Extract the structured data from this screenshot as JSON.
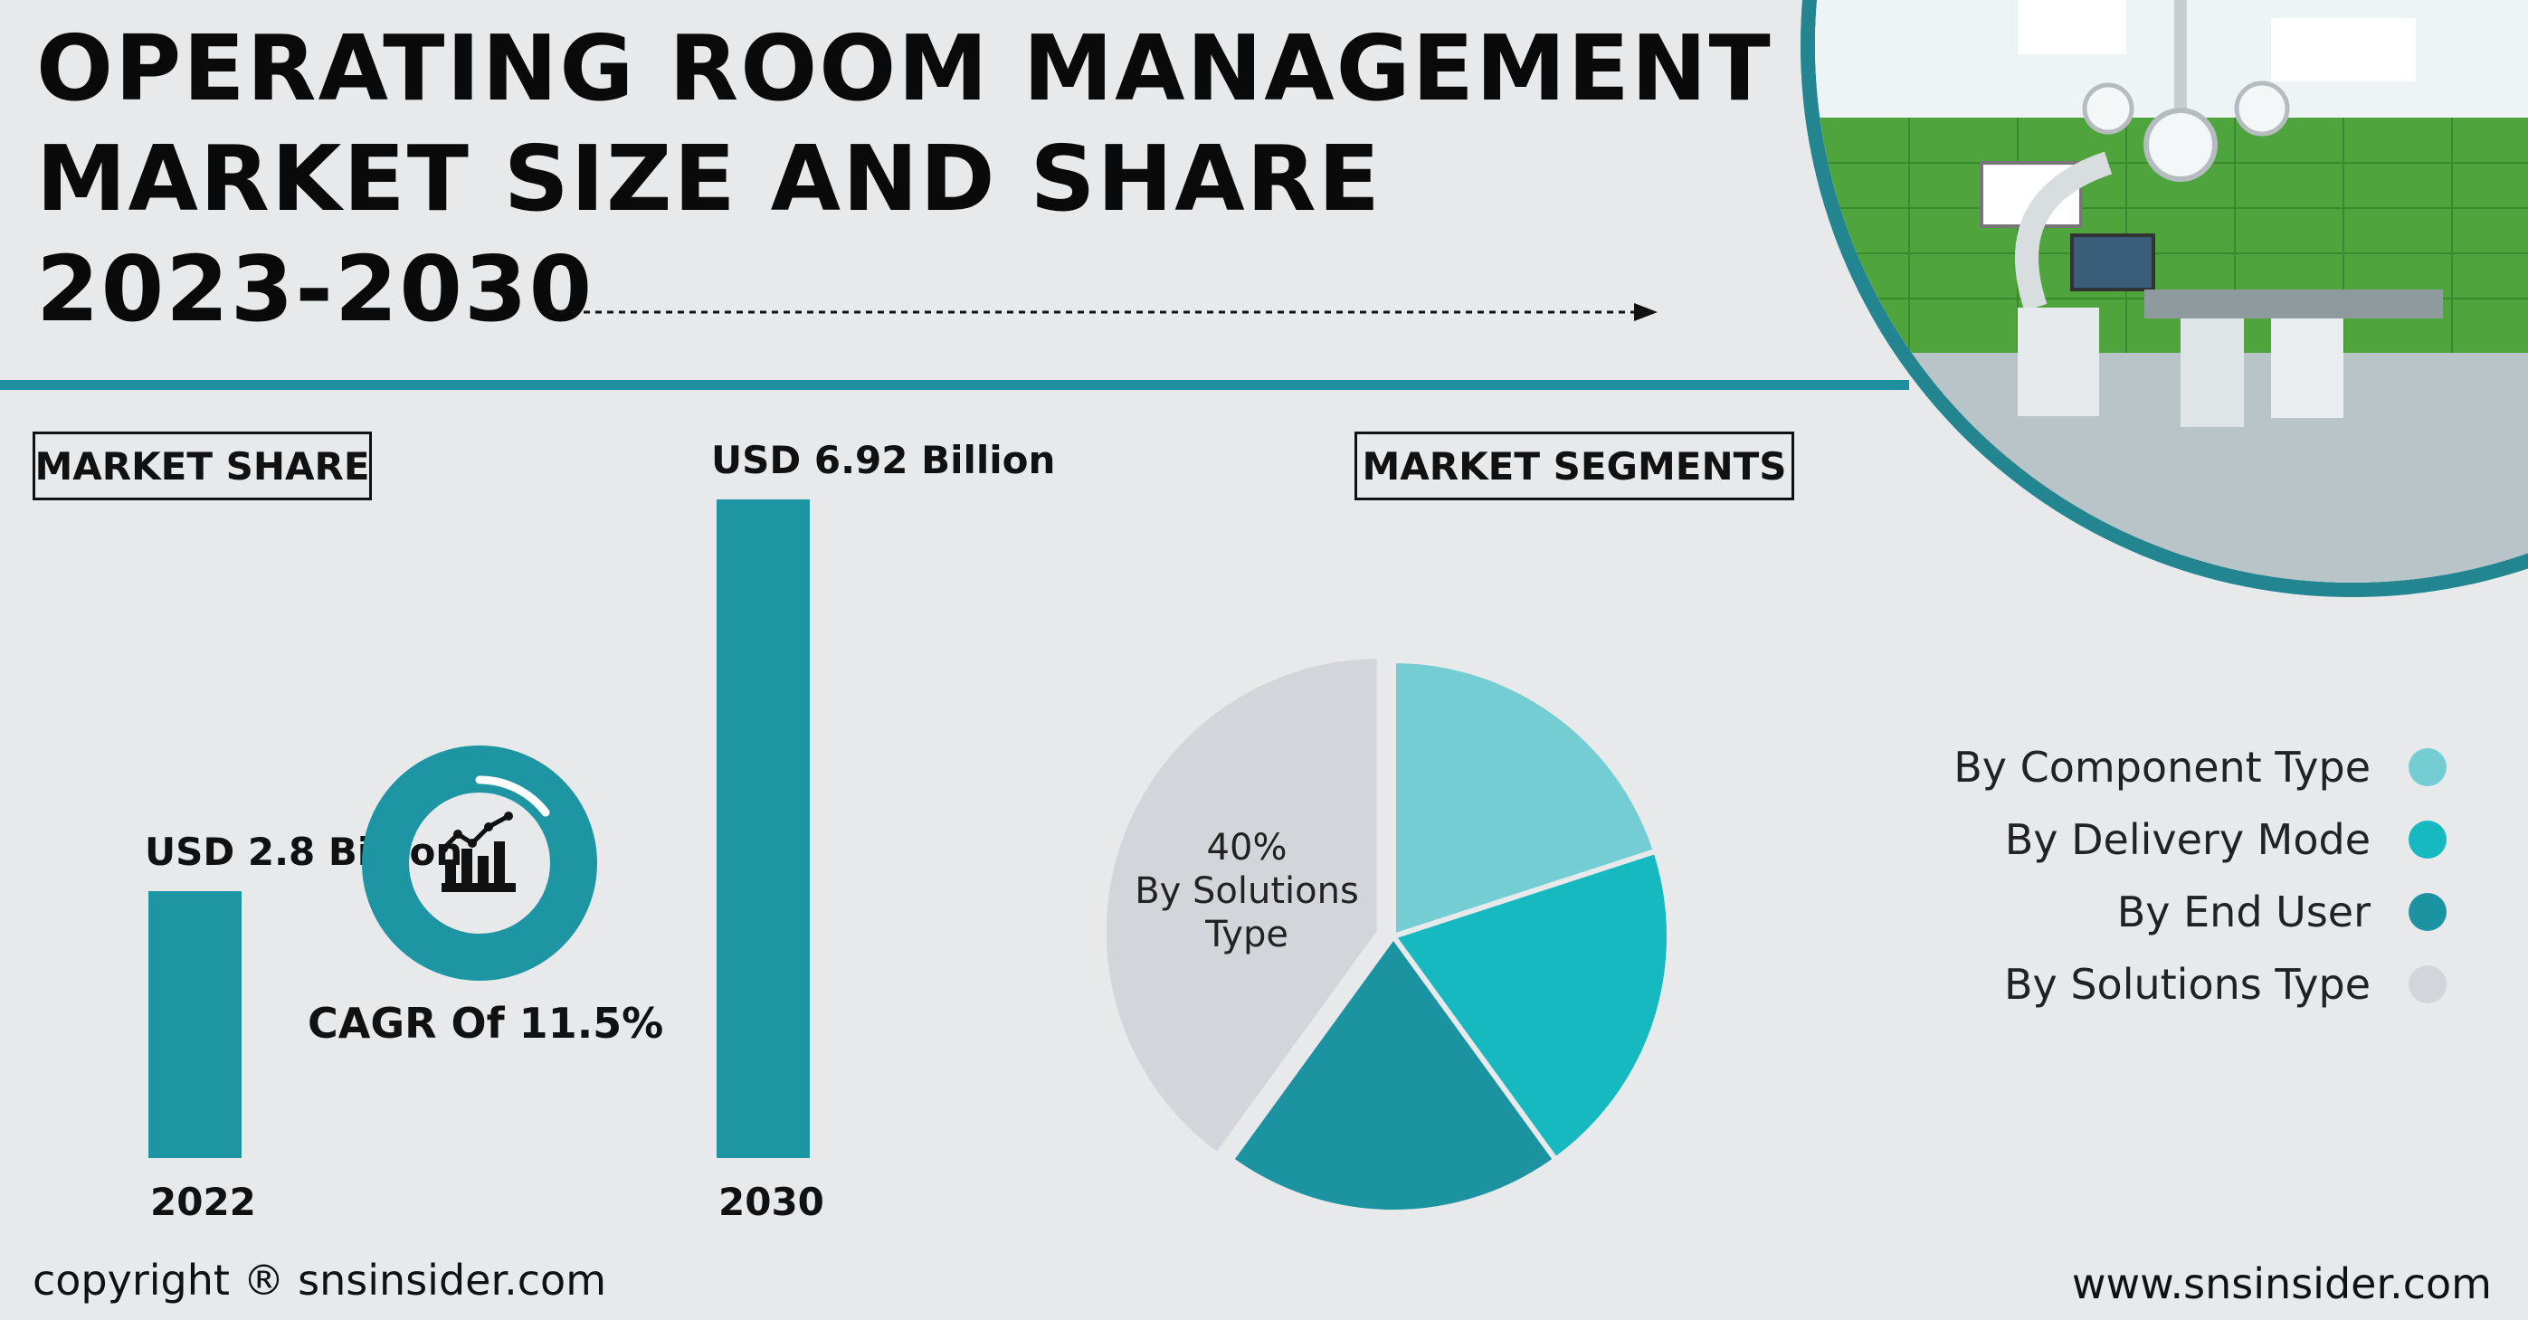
{
  "header": {
    "title_lines": [
      "OPERATING ROOM MANAGEMENT",
      "MARKET SIZE AND SHARE",
      "2023-2030"
    ]
  },
  "labels": {
    "market_share": "MARKET SHARE",
    "market_segments": "MARKET SEGMENTS"
  },
  "cagr": {
    "text": "CAGR Of 11.5%",
    "icon": "chart-growth-icon"
  },
  "chart_data": [
    {
      "type": "bar",
      "categories": [
        "2022",
        "2030"
      ],
      "values": [
        2.8,
        6.92
      ],
      "value_labels": [
        "USD 2.8 Billion",
        "USD 6.92 Billion"
      ],
      "unit": "USD Billion",
      "ylim": [
        0,
        6.92
      ],
      "grid": false
    },
    {
      "type": "pie",
      "slices": [
        {
          "label": "By Component Type",
          "value": 20,
          "color": "#74cdd2"
        },
        {
          "label": "By Delivery Mode",
          "value": 20,
          "color": "#17b9c1"
        },
        {
          "label": "By End User",
          "value": 20,
          "color": "#1c93a0"
        },
        {
          "label": "By Solutions Type",
          "value": 40,
          "color": "#d2d6da",
          "exploded": true
        }
      ],
      "annotation": {
        "percent": "40%",
        "text": [
          "By Solutions",
          "Type"
        ]
      },
      "legend_position": "right"
    }
  ],
  "footer": {
    "copyright": "copyright ® snsinsider.com",
    "website": "www.snsinsider.com"
  },
  "colors": {
    "accent": "#1e95a2",
    "background": "#e8e9eb"
  }
}
